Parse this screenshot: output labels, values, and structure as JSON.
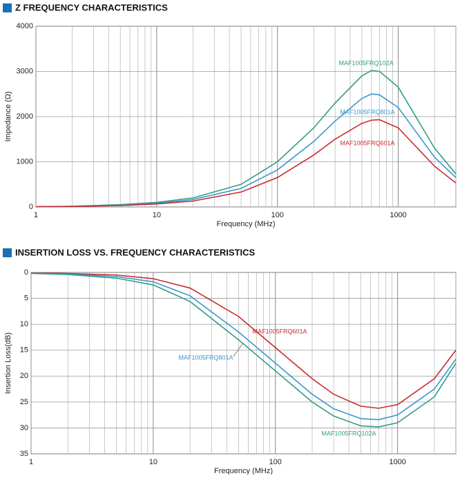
{
  "chart_data": [
    {
      "type": "line",
      "title": "Z FREQUENCY CHARACTERISTICS",
      "xlabel": "Frequency (MHz)",
      "ylabel": "Impedance (Ω)",
      "xscale": "log",
      "grid": true,
      "x": [
        1,
        2,
        5,
        10,
        20,
        50,
        100,
        200,
        300,
        500,
        600,
        700,
        1000,
        2000,
        3000
      ],
      "series": [
        {
          "name": "MAF1005FRQ102A",
          "color": "#2f9c86",
          "values": [
            5,
            15,
            50,
            100,
            200,
            500,
            1000,
            1750,
            2300,
            2900,
            3020,
            3000,
            2650,
            1300,
            730
          ]
        },
        {
          "name": "MAF1005FRQ801A",
          "color": "#3a96cc",
          "values": [
            5,
            12,
            40,
            80,
            165,
            410,
            820,
            1450,
            1900,
            2400,
            2500,
            2480,
            2200,
            1100,
            650
          ]
        },
        {
          "name": "MAF1005FRQ601A",
          "color": "#c72a2f",
          "values": [
            4,
            10,
            32,
            65,
            130,
            330,
            650,
            1150,
            1500,
            1850,
            1920,
            1930,
            1750,
            900,
            530
          ]
        }
      ],
      "xlim": [
        1,
        3000
      ],
      "xticks": [
        1,
        10,
        100,
        1000
      ],
      "x_minor_grid": [
        2,
        3,
        4,
        5,
        6,
        7,
        8,
        9,
        20,
        30,
        40,
        50,
        60,
        70,
        80,
        90,
        200,
        300,
        400,
        500,
        600,
        700,
        800,
        900,
        2000,
        3000
      ],
      "ylim": [
        0,
        4000
      ],
      "yticks": [
        0,
        1000,
        2000,
        3000,
        4000
      ]
    },
    {
      "type": "line",
      "title": "INSERTION LOSS VS. FREQUENCY CHARACTERISTICS",
      "xlabel": "Frequency (MHz)",
      "ylabel": "Insertion Loss(dB)",
      "xscale": "log",
      "grid": true,
      "y_inverted": true,
      "x": [
        1,
        2,
        5,
        10,
        20,
        50,
        100,
        200,
        300,
        500,
        700,
        1000,
        2000,
        3000
      ],
      "series": [
        {
          "name": "MAF1005FRQ601A",
          "color": "#c72a2f",
          "values": [
            0.1,
            0.2,
            0.5,
            1.2,
            3,
            8.5,
            14.5,
            20.5,
            23.5,
            25.8,
            26.2,
            25.5,
            20.5,
            15
          ]
        },
        {
          "name": "MAF1005FRQ801A",
          "color": "#3a96cc",
          "values": [
            0.15,
            0.3,
            0.8,
            1.8,
            4.5,
            11.5,
            17.5,
            23.5,
            26.3,
            28.2,
            28.4,
            27.5,
            22.5,
            16.7
          ]
        },
        {
          "name": "MAF1005FRQ102A",
          "color": "#2f9c86",
          "values": [
            0.2,
            0.4,
            1.1,
            2.4,
            5.6,
            13,
            19,
            25,
            27.7,
            29.6,
            29.8,
            29,
            24,
            17.5
          ]
        }
      ],
      "xlim": [
        1,
        3000
      ],
      "xticks": [
        1,
        10,
        100,
        1000
      ],
      "x_minor_grid": [
        2,
        3,
        4,
        5,
        6,
        7,
        8,
        9,
        20,
        30,
        40,
        50,
        60,
        70,
        80,
        90,
        200,
        300,
        400,
        500,
        600,
        700,
        800,
        900,
        2000,
        3000
      ],
      "ylim": [
        0,
        35
      ],
      "yticks": [
        0,
        5,
        10,
        15,
        20,
        25,
        30,
        35
      ]
    }
  ]
}
